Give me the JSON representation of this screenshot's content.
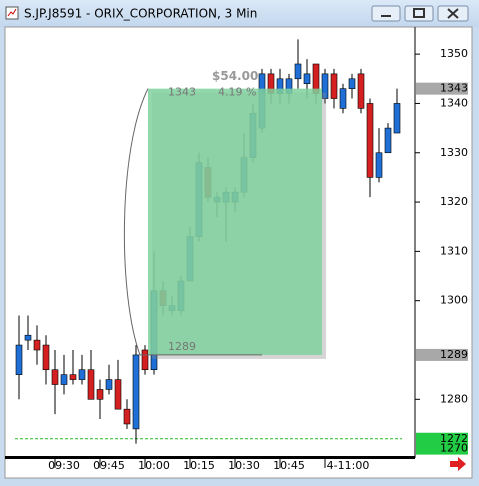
{
  "window_title": "S.JP.J8591 - ORIX_CORPORATION, 3 Min",
  "chart_data": {
    "type": "candlestick",
    "categories": [
      null,
      null,
      null,
      null,
      null,
      "09:30",
      null,
      null,
      null,
      null,
      "09:45",
      null,
      null,
      null,
      null,
      "10:00",
      null,
      null,
      null,
      null,
      "10:15",
      null,
      null,
      null,
      null,
      "10:30",
      null,
      null,
      null,
      null,
      "10:45",
      null,
      null,
      null,
      null,
      "4-11:00",
      null,
      null,
      null,
      null,
      null,
      null,
      null
    ],
    "open": [
      1285,
      1292,
      1292,
      1291,
      1286,
      1283,
      1285,
      1284,
      1286,
      1282,
      1282,
      1284,
      1278,
      1274,
      1290,
      1286,
      1302,
      1298,
      1298,
      1304,
      1313,
      1327,
      1320,
      1320,
      1320,
      1322,
      1329,
      1335,
      1346,
      1342,
      1342,
      1345,
      1344,
      1348,
      1341,
      1346,
      1339,
      1343,
      1346,
      1340,
      1325,
      1330,
      1334
    ],
    "high": [
      1297,
      1297,
      1295,
      1293,
      1290,
      1289,
      1290,
      1289,
      1290,
      1284,
      1287,
      1288,
      1280,
      1291,
      1291,
      1310,
      1304,
      1301,
      1305,
      1315,
      1330,
      1329,
      1322,
      1323,
      1323,
      1334,
      1340,
      1347,
      1347,
      1347,
      1346,
      1353,
      1349,
      1348,
      1347,
      1347,
      1344,
      1346,
      1347,
      1341,
      1335,
      1336,
      1343
    ],
    "low": [
      1280,
      1290,
      1287,
      1283,
      1277,
      1281,
      1283,
      1283,
      1280,
      1276,
      1281,
      1278,
      1274,
      1271,
      1285,
      1285,
      1297,
      1297,
      1297,
      1304,
      1312,
      1320,
      1317,
      1312,
      1318,
      1321,
      1328,
      1334,
      1340,
      1340,
      1340,
      1343,
      1341,
      1340,
      1340,
      1339,
      1338,
      1341,
      1338,
      1321,
      1324,
      1330,
      1334
    ],
    "close": [
      1291,
      1293,
      1290,
      1286,
      1283,
      1285,
      1284,
      1286,
      1280,
      1280,
      1284,
      1278,
      1275,
      1289,
      1286,
      1302,
      1299,
      1299,
      1304,
      1313,
      1328,
      1321,
      1321,
      1322,
      1322,
      1329,
      1338,
      1346,
      1342,
      1345,
      1345,
      1348,
      1346,
      1342,
      1346,
      1341,
      1343,
      1345,
      1339,
      1325,
      1330,
      1335,
      1340
    ],
    "up_color": "#1f6fd6",
    "down_color": "#d42020",
    "ylim": [
      1268.3,
      1355.3
    ],
    "yticks": [
      1280,
      1300,
      1310,
      1320,
      1330,
      1340,
      1350
    ],
    "measure": {
      "from": 1289,
      "to": 1343,
      "change_label": "$54.00",
      "percent_label": "4.19 %",
      "color": "#7fd19e"
    },
    "level_line": {
      "value": 1272,
      "color": "#22bb22"
    },
    "price_markers": [
      {
        "value": 1343,
        "color": "#a8a8a8"
      },
      {
        "value": 1289,
        "color": "#a8a8a8"
      },
      {
        "value": 1272,
        "color": "#22cc44"
      },
      {
        "value": 1270,
        "color": "#22cc44"
      }
    ]
  }
}
